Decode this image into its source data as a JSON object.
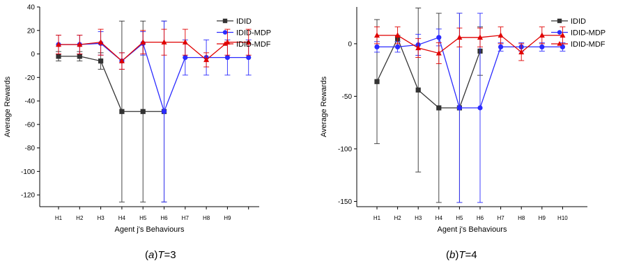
{
  "chart_data": [
    {
      "type": "line",
      "caption": {
        "label": "a",
        "var": "T",
        "value": "=3"
      },
      "xlabel": "Agent j's Behaviours",
      "ylabel": "Average Rewards",
      "ylim": [
        -130,
        40
      ],
      "yticks": [
        40,
        20,
        0,
        -20,
        -40,
        -60,
        -80,
        -100,
        -120
      ],
      "categories": [
        "H1",
        "H2",
        "H3",
        "H4",
        "H5",
        "H6",
        "H7",
        "H8",
        "H9",
        ""
      ],
      "grid": false,
      "legend_position": "top-right",
      "series": [
        {
          "name": "IDID",
          "color": "#333333",
          "marker": "square",
          "values": [
            -2,
            -2,
            -6,
            -49,
            -49,
            -49,
            null,
            null,
            null,
            null
          ],
          "errors": [
            4,
            4,
            7,
            77,
            77,
            77,
            null,
            null,
            null,
            null
          ]
        },
        {
          "name": "IDID-MDP",
          "color": "#2b2bff",
          "marker": "circle",
          "values": [
            8,
            8,
            9,
            -6,
            9,
            -49,
            -3,
            -3,
            -3,
            -3
          ],
          "errors": [
            8,
            8,
            10,
            7,
            10,
            77,
            15,
            15,
            15,
            15
          ]
        },
        {
          "name": "IDID-MDF",
          "color": "#e00000",
          "marker": "triangle",
          "values": [
            8,
            8,
            10,
            -6,
            10,
            10,
            10,
            -5,
            10,
            10
          ],
          "errors": [
            8,
            8,
            11,
            7,
            10,
            11,
            11,
            6,
            11,
            11
          ]
        }
      ]
    },
    {
      "type": "line",
      "caption": {
        "label": "b",
        "var": "T",
        "value": "=4"
      },
      "xlabel": "Agent j's Behaviours",
      "ylabel": "Average Rewards",
      "ylim": [
        -155,
        35
      ],
      "yticks": [
        0,
        -50,
        -100,
        -150
      ],
      "categories": [
        "H1",
        "H2",
        "H3",
        "H4",
        "H5",
        "H6",
        "H7",
        "H8",
        "H9",
        "H10"
      ],
      "grid": false,
      "legend_position": "top-right",
      "series": [
        {
          "name": "IDID",
          "color": "#333333",
          "marker": "square",
          "values": [
            -36,
            5,
            -44,
            -61,
            -61,
            -7,
            null,
            null,
            null,
            null
          ],
          "errors": [
            59,
            3,
            78,
            90,
            90,
            23,
            null,
            null,
            null,
            null
          ]
        },
        {
          "name": "IDID-MDP",
          "color": "#2b2bff",
          "marker": "circle",
          "values": [
            -3,
            -3,
            -1,
            6,
            -61,
            -61,
            -3,
            -3,
            -3,
            -3
          ],
          "errors": [
            5,
            5,
            10,
            8,
            90,
            90,
            4,
            4,
            4,
            4
          ]
        },
        {
          "name": "IDID-MDF",
          "color": "#e00000",
          "marker": "triangle",
          "values": [
            8,
            8,
            -4,
            -9,
            6,
            6,
            8,
            -8,
            8,
            8
          ],
          "errors": [
            8,
            8,
            9,
            10,
            9,
            9,
            8,
            8,
            8,
            8
          ]
        }
      ]
    }
  ]
}
